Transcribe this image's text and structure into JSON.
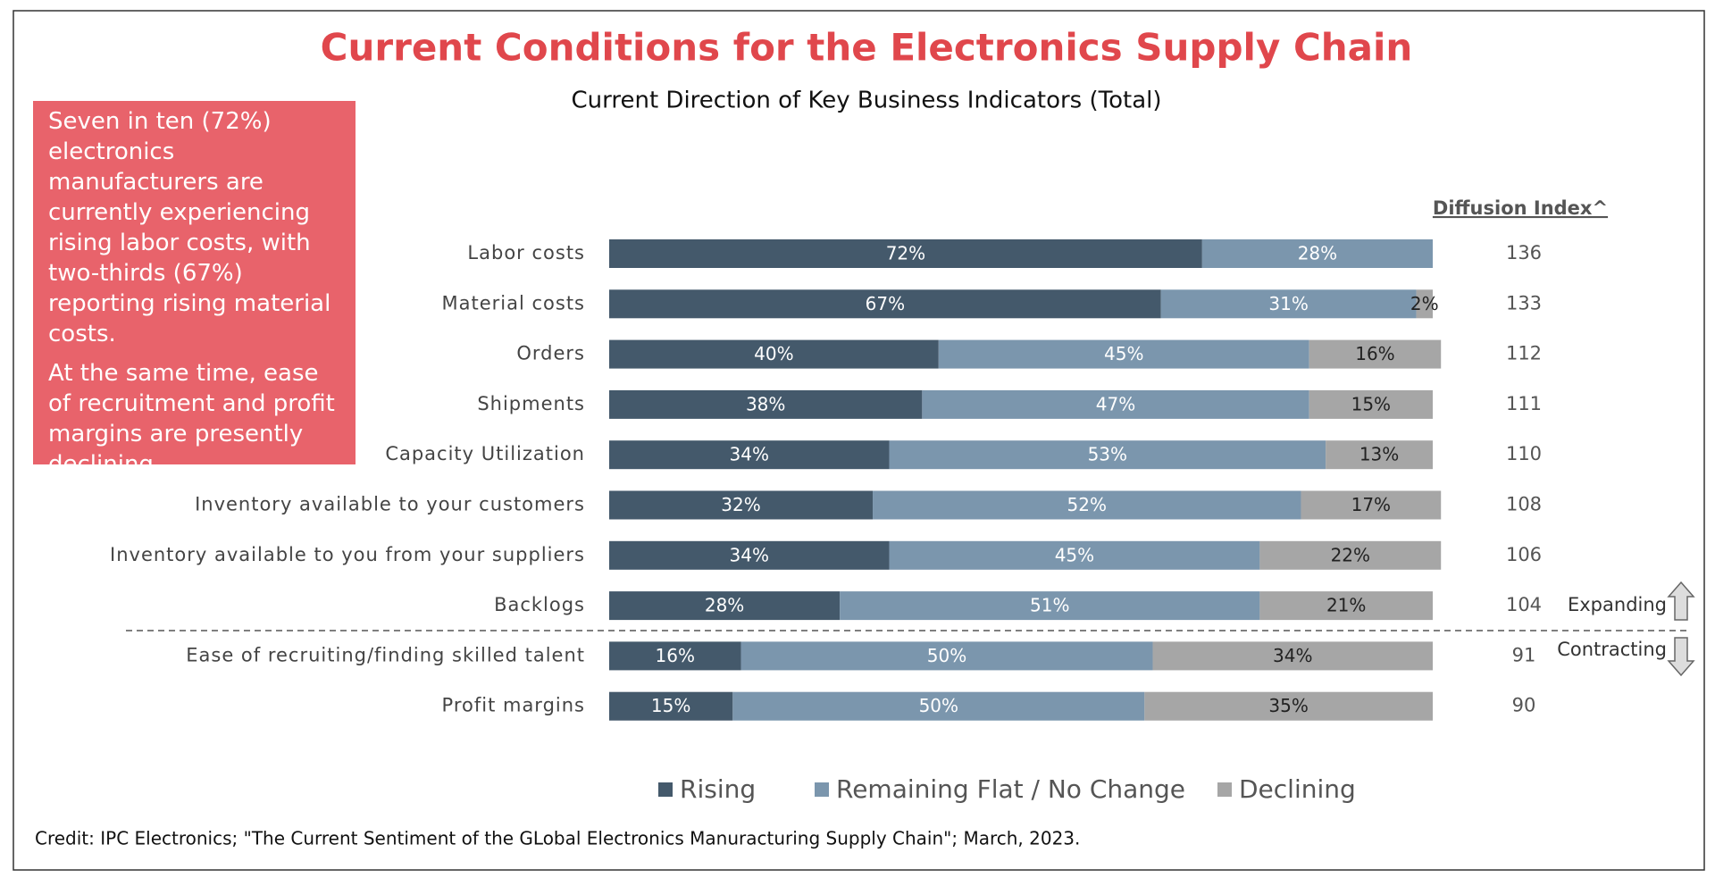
{
  "chart_data": {
    "type": "stacked-bar-horizontal",
    "title": "Current Conditions for the Electronics Supply Chain",
    "subtitle": "Current Direction of Key Business Indicators (Total)",
    "categories": [
      "Labor costs",
      "Material costs",
      "Orders",
      "Shipments",
      "Capacity Utilization",
      "Inventory available to your customers",
      "Inventory available to you from your suppliers",
      "Backlogs",
      "Ease of recruiting/finding skilled talent",
      "Profit margins"
    ],
    "xlim": [
      0,
      100
    ],
    "series": [
      {
        "name": "Rising",
        "color": "#44596b",
        "values": [
          72,
          67,
          40,
          38,
          34,
          32,
          34,
          28,
          16,
          15
        ],
        "value_labels": [
          "72%",
          "67%",
          "40%",
          "38%",
          "34%",
          "32%",
          "34%",
          "28%",
          "16%",
          "15%"
        ]
      },
      {
        "name": "Remaining Flat / No Change",
        "color": "#7b96ad",
        "values": [
          28,
          31,
          45,
          47,
          53,
          52,
          45,
          51,
          50,
          50
        ],
        "value_labels": [
          "28%",
          "31%",
          "45%",
          "47%",
          "53%",
          "52%",
          "45%",
          "51%",
          "50%",
          "50%"
        ]
      },
      {
        "name": "Declining",
        "color": "#a6a6a6",
        "values": [
          null,
          2,
          16,
          15,
          13,
          17,
          22,
          21,
          34,
          35
        ],
        "value_labels": [
          null,
          "2%",
          "16%",
          "15%",
          "13%",
          "17%",
          "22%",
          "21%",
          "34%",
          "35%"
        ]
      }
    ],
    "diffusion_index": {
      "title": "Diffusion Index^",
      "values": [
        136,
        133,
        112,
        111,
        110,
        108,
        106,
        104,
        91,
        90
      ]
    },
    "annotations": {
      "expanding": "Expanding",
      "contracting": "Contracting"
    },
    "callout": [
      "Seven in ten (72%) electronics manufacturers are currently experiencing rising labor costs, with two-thirds (67%) reporting rising material costs.",
      "At the same time, ease of recruitment and profit margins are presently declining."
    ],
    "credit": "Credit: IPC Electronics; \"The Current Sentiment of the GLobal Electronics Manuracturing Supply Chain\"; March, 2023."
  }
}
